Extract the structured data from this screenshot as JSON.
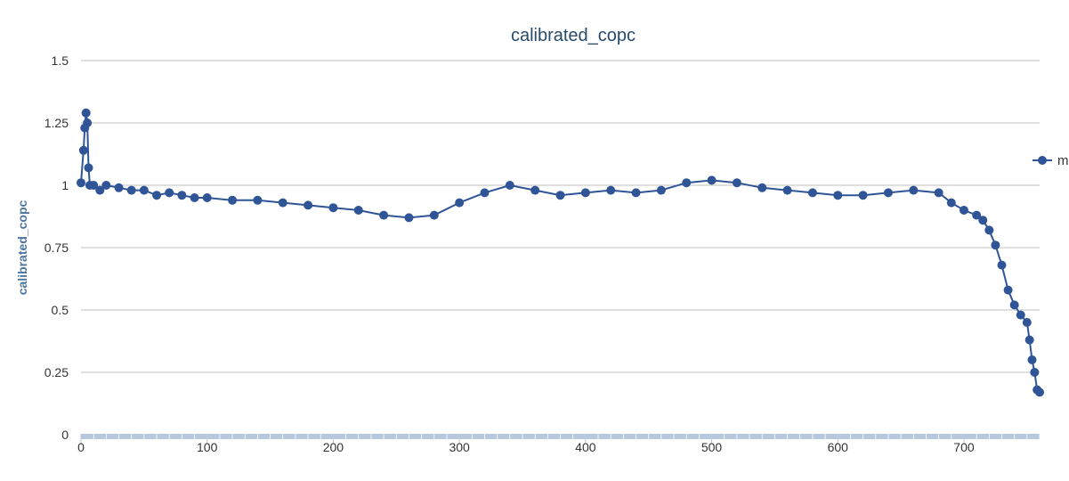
{
  "chart_data": {
    "type": "line",
    "title": "calibrated_copc",
    "xlabel": "",
    "ylabel": "calibrated_copc",
    "xlim": [
      0,
      760
    ],
    "ylim": [
      0,
      1.5
    ],
    "x_ticks": [
      0,
      100,
      200,
      300,
      400,
      500,
      600,
      700
    ],
    "y_ticks": [
      0,
      0.25,
      0.5,
      0.75,
      1,
      1.25,
      1.5
    ],
    "x_tick_labels": [
      "0",
      "100",
      "200",
      "300",
      "400",
      "500",
      "600",
      "700"
    ],
    "y_tick_labels": [
      "0",
      "0.25",
      "0.5",
      "0.75",
      "1",
      "1.25",
      "1.5"
    ],
    "grid": true,
    "legend_position": "right (partially clipped)",
    "series": [
      {
        "name": "m",
        "color": "#2f5597",
        "x": [
          0,
          2,
          3,
          4,
          5,
          6,
          7,
          10,
          15,
          20,
          30,
          40,
          50,
          60,
          70,
          80,
          90,
          100,
          120,
          140,
          160,
          180,
          200,
          220,
          240,
          260,
          280,
          300,
          320,
          340,
          360,
          380,
          400,
          420,
          440,
          460,
          480,
          500,
          520,
          540,
          560,
          580,
          600,
          620,
          640,
          660,
          680,
          690,
          700,
          710,
          715,
          720,
          725,
          730,
          735,
          740,
          745,
          750,
          752,
          754,
          756,
          758,
          760
        ],
        "values": [
          1.01,
          1.14,
          1.23,
          1.29,
          1.25,
          1.07,
          1.0,
          1.0,
          0.98,
          1.0,
          0.99,
          0.98,
          0.98,
          0.96,
          0.97,
          0.96,
          0.95,
          0.95,
          0.94,
          0.94,
          0.93,
          0.92,
          0.91,
          0.9,
          0.88,
          0.87,
          0.88,
          0.93,
          0.97,
          1.0,
          0.98,
          0.96,
          0.97,
          0.98,
          0.97,
          0.98,
          1.01,
          1.02,
          1.01,
          0.99,
          0.98,
          0.97,
          0.96,
          0.96,
          0.97,
          0.98,
          0.97,
          0.93,
          0.9,
          0.88,
          0.86,
          0.82,
          0.76,
          0.68,
          0.58,
          0.52,
          0.48,
          0.45,
          0.38,
          0.3,
          0.25,
          0.18,
          0.17
        ]
      }
    ]
  }
}
